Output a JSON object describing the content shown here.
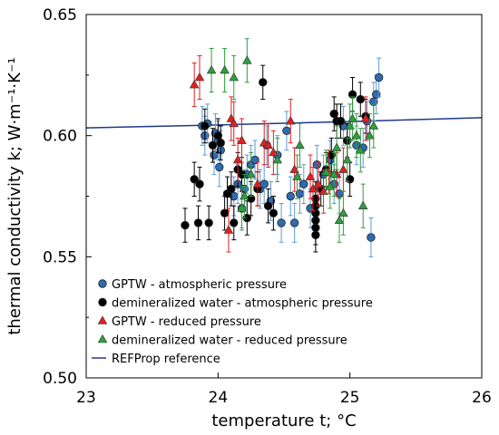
{
  "chart_data": {
    "type": "scatter",
    "xlim": [
      23,
      26
    ],
    "ylim": [
      0.5,
      0.65
    ],
    "xticks": [
      "23",
      "24",
      "25",
      "26"
    ],
    "yticks": [
      "0.50",
      "0.55",
      "0.60",
      "0.65"
    ],
    "xlabel": "temperature t; °C",
    "ylabel": "thermal conductivity k; W·m⁻¹·K⁻¹",
    "grid": false,
    "legend_position": "bottom-left",
    "series": [
      {
        "name": "GPTW - atmospheric pressure",
        "marker": "circle",
        "color": "#2E6BB0",
        "error_color": "#5B9BD5",
        "error": 0.008,
        "points": [
          [
            23.88,
            0.604
          ],
          [
            23.9,
            0.6
          ],
          [
            23.92,
            0.605
          ],
          [
            23.97,
            0.592
          ],
          [
            23.98,
            0.601
          ],
          [
            24.0,
            0.598
          ],
          [
            24.02,
            0.594
          ],
          [
            24.01,
            0.587
          ],
          [
            24.12,
            0.575
          ],
          [
            24.15,
            0.58
          ],
          [
            24.18,
            0.57
          ],
          [
            24.2,
            0.578
          ],
          [
            24.22,
            0.584
          ],
          [
            24.25,
            0.588
          ],
          [
            24.28,
            0.59
          ],
          [
            24.32,
            0.578
          ],
          [
            24.35,
            0.58
          ],
          [
            24.37,
            0.596
          ],
          [
            24.4,
            0.573
          ],
          [
            24.45,
            0.592
          ],
          [
            24.48,
            0.564
          ],
          [
            24.52,
            0.602
          ],
          [
            24.55,
            0.575
          ],
          [
            24.58,
            0.564
          ],
          [
            24.62,
            0.576
          ],
          [
            24.65,
            0.58
          ],
          [
            24.7,
            0.57
          ],
          [
            24.75,
            0.588
          ],
          [
            24.8,
            0.584
          ],
          [
            24.85,
            0.59
          ],
          [
            24.88,
            0.58
          ],
          [
            24.92,
            0.576
          ],
          [
            24.95,
            0.604
          ],
          [
            24.98,
            0.598
          ],
          [
            25.05,
            0.596
          ],
          [
            25.1,
            0.595
          ],
          [
            25.13,
            0.606
          ],
          [
            25.18,
            0.614
          ],
          [
            25.2,
            0.617
          ],
          [
            25.22,
            0.624
          ],
          [
            25.16,
            0.558
          ]
        ]
      },
      {
        "name": "demineralized water - atmospheric pressure",
        "marker": "circle",
        "color": "#000000",
        "error_color": "#000000",
        "error": 0.007,
        "points": [
          [
            23.75,
            0.563
          ],
          [
            23.82,
            0.582
          ],
          [
            23.85,
            0.564
          ],
          [
            23.86,
            0.58
          ],
          [
            23.9,
            0.604
          ],
          [
            23.93,
            0.564
          ],
          [
            23.96,
            0.596
          ],
          [
            24.0,
            0.6
          ],
          [
            24.02,
            0.597
          ],
          [
            24.05,
            0.568
          ],
          [
            24.07,
            0.576
          ],
          [
            24.1,
            0.578
          ],
          [
            24.12,
            0.564
          ],
          [
            24.15,
            0.586
          ],
          [
            24.18,
            0.584
          ],
          [
            24.22,
            0.566
          ],
          [
            24.25,
            0.574
          ],
          [
            24.3,
            0.578
          ],
          [
            24.34,
            0.622
          ],
          [
            24.38,
            0.571
          ],
          [
            24.42,
            0.568
          ],
          [
            24.74,
            0.559
          ],
          [
            24.74,
            0.562
          ],
          [
            24.74,
            0.565
          ],
          [
            24.74,
            0.568
          ],
          [
            24.74,
            0.571
          ],
          [
            24.74,
            0.574
          ],
          [
            24.78,
            0.578
          ],
          [
            24.82,
            0.586
          ],
          [
            24.86,
            0.592
          ],
          [
            24.88,
            0.609
          ],
          [
            24.9,
            0.606
          ],
          [
            24.93,
            0.606
          ],
          [
            24.98,
            0.598
          ],
          [
            25.0,
            0.582
          ],
          [
            25.02,
            0.617
          ],
          [
            25.08,
            0.615
          ],
          [
            25.12,
            0.608
          ]
        ]
      },
      {
        "name": "GPTW - reduced pressure",
        "marker": "triangle-up",
        "color": "#E02020",
        "error_color": "#E02020",
        "error": 0.009,
        "points": [
          [
            23.82,
            0.621
          ],
          [
            23.86,
            0.624
          ],
          [
            24.1,
            0.607
          ],
          [
            24.12,
            0.605
          ],
          [
            24.15,
            0.59
          ],
          [
            24.18,
            0.598
          ],
          [
            24.08,
            0.561
          ],
          [
            24.3,
            0.58
          ],
          [
            24.35,
            0.597
          ],
          [
            24.38,
            0.596
          ],
          [
            24.42,
            0.593
          ],
          [
            24.55,
            0.606
          ],
          [
            24.58,
            0.586
          ],
          [
            24.7,
            0.583
          ],
          [
            24.72,
            0.578
          ],
          [
            24.76,
            0.58
          ],
          [
            24.8,
            0.577
          ],
          [
            24.84,
            0.585
          ],
          [
            24.9,
            0.584
          ],
          [
            24.95,
            0.586
          ],
          [
            25.12,
            0.607
          ]
        ]
      },
      {
        "name": "demineralized water - reduced pressure",
        "marker": "triangle-up",
        "color": "#2E9E3E",
        "error_color": "#2E9E3E",
        "error": 0.009,
        "points": [
          [
            23.95,
            0.627
          ],
          [
            24.05,
            0.627
          ],
          [
            24.12,
            0.624
          ],
          [
            24.22,
            0.631
          ],
          [
            24.18,
            0.57
          ],
          [
            24.2,
            0.575
          ],
          [
            24.25,
            0.584
          ],
          [
            24.45,
            0.59
          ],
          [
            24.6,
            0.583
          ],
          [
            24.62,
            0.596
          ],
          [
            24.82,
            0.585
          ],
          [
            24.85,
            0.579
          ],
          [
            24.88,
            0.584
          ],
          [
            24.9,
            0.595
          ],
          [
            24.92,
            0.565
          ],
          [
            24.95,
            0.568
          ],
          [
            24.98,
            0.59
          ],
          [
            25.0,
            0.604
          ],
          [
            25.02,
            0.607
          ],
          [
            25.05,
            0.6
          ],
          [
            25.08,
            0.594
          ],
          [
            25.1,
            0.571
          ],
          [
            25.15,
            0.6
          ],
          [
            25.18,
            0.604
          ]
        ]
      },
      {
        "name": "REFProp reference",
        "marker": "line",
        "color": "#1F3A8A",
        "x": [
          23,
          23.5,
          24,
          24.5,
          25,
          25.5,
          26
        ],
        "y": [
          0.6032,
          0.6038,
          0.6044,
          0.6051,
          0.6058,
          0.6066,
          0.6074
        ]
      }
    ]
  }
}
